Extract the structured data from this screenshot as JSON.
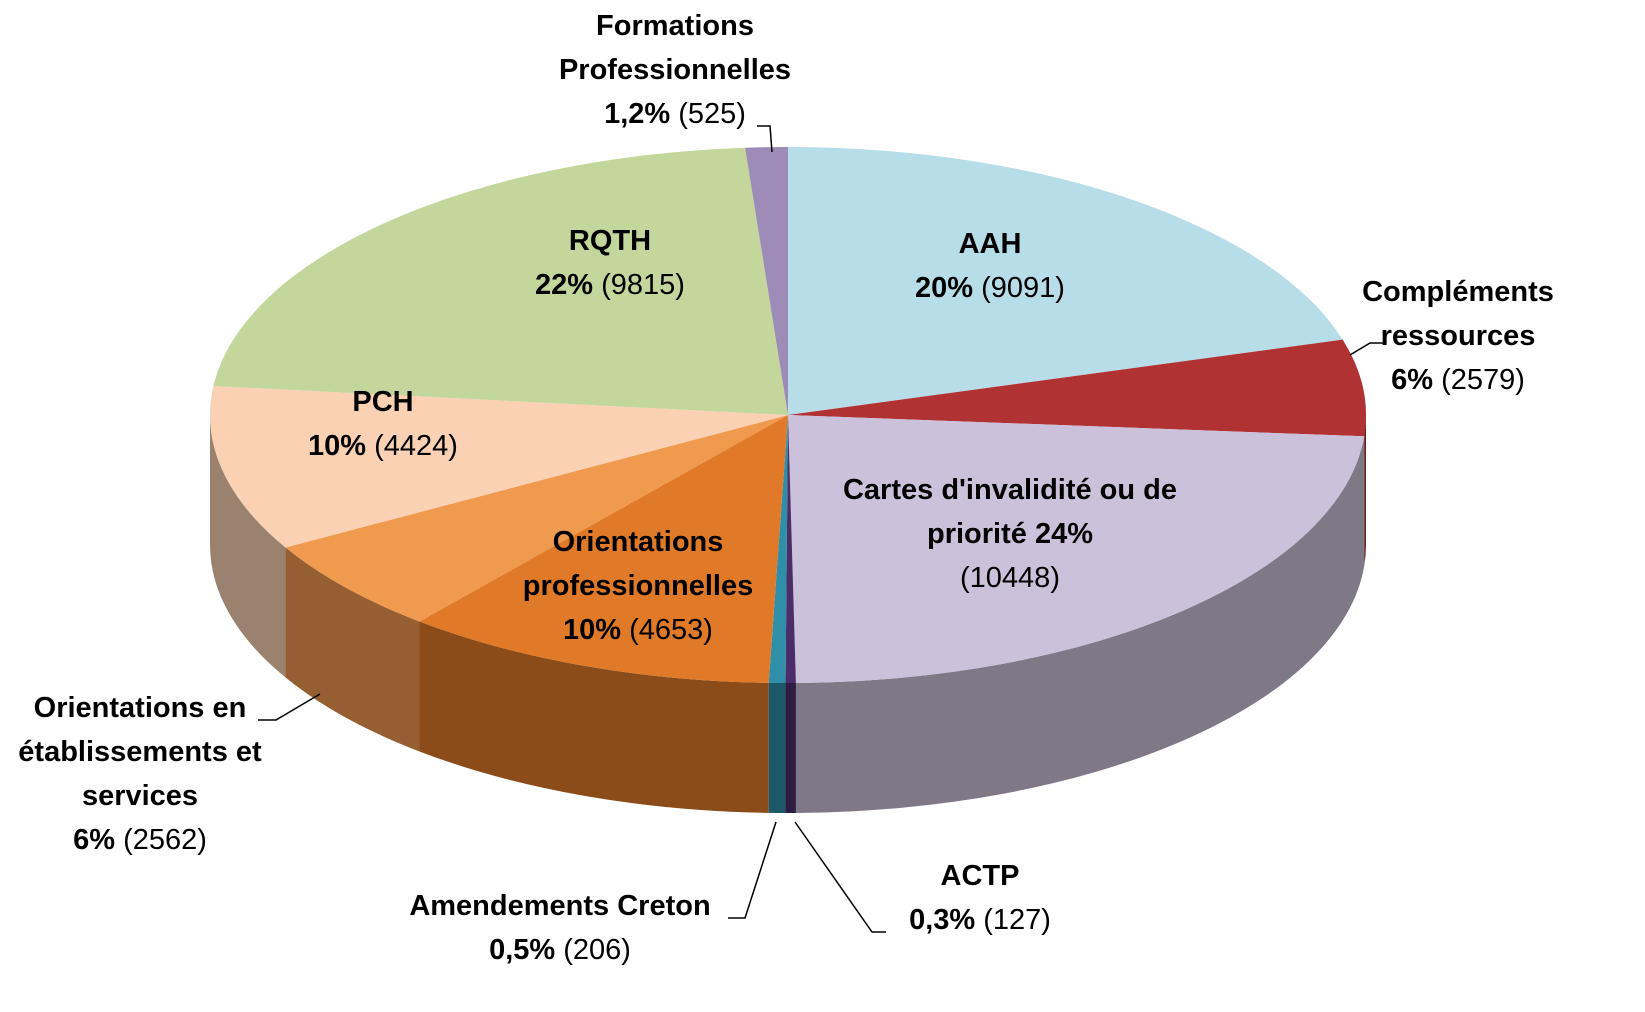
{
  "chart_data": {
    "type": "pie3d",
    "series": [
      {
        "categories": [
          "AAH",
          "Compléments ressources",
          "Cartes d'invalidité ou de priorité",
          "ACTP",
          "Amendements Creton",
          "Orientations professionnelles",
          "Orientations en établissements et services",
          "PCH",
          "RQTH",
          "Formations Professionnelles"
        ],
        "values": [
          9091,
          2579,
          10448,
          127,
          206,
          4653,
          2562,
          4424,
          9815,
          525
        ],
        "value_labels": [
          "(9091)",
          "(2579)",
          "(10448)",
          "(127)",
          "(206)",
          "(4653)",
          "(2562)",
          "(4424)",
          "(9815)",
          "(525)"
        ],
        "percents": [
          20,
          6,
          24,
          0.3,
          0.5,
          10,
          6,
          10,
          22,
          1.2
        ],
        "percent_labels": [
          "20%",
          "6%",
          "24%",
          "0,3%",
          "0,5%",
          "10%",
          "6%",
          "10%",
          "22%",
          "1,2%"
        ],
        "colors": [
          "#b7dde8",
          "#b03233",
          "#ccc1da",
          "#4b2d6a",
          "#2f8ea8",
          "#e07a28",
          "#f09a50",
          "#fad1b3",
          "#c3d69b",
          "#9d8bb8"
        ]
      }
    ]
  }
}
